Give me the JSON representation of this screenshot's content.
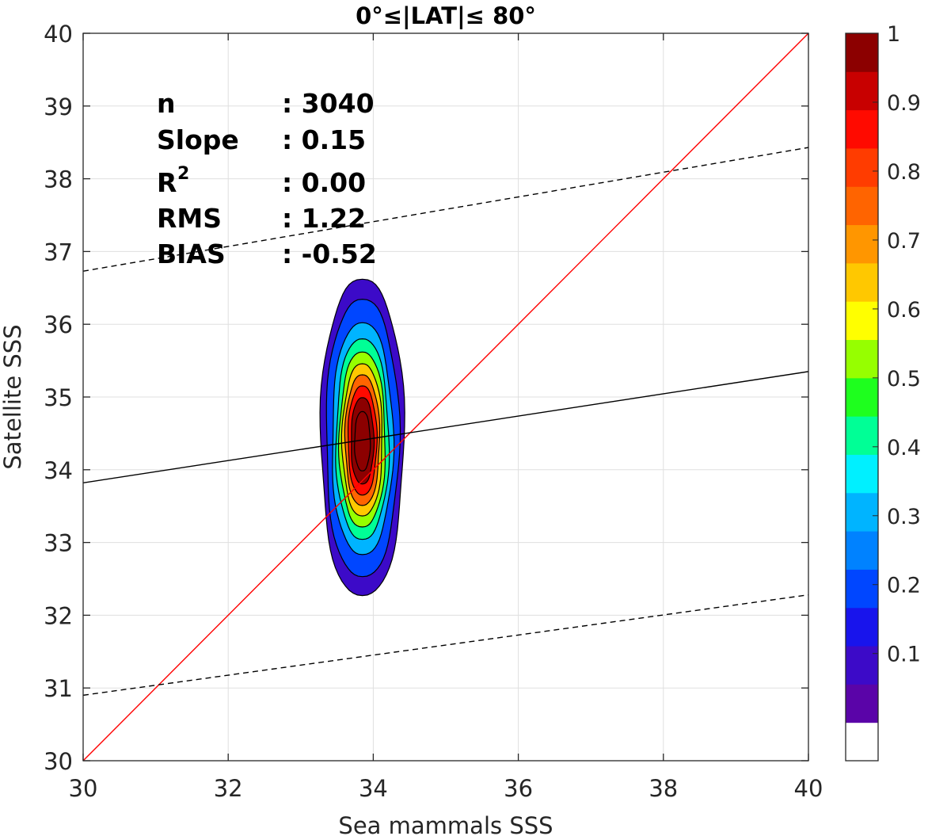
{
  "chart_data": {
    "type": "contour",
    "title": "0°≤|LAT|≤ 80°",
    "xlabel": "Sea mammals  SSS",
    "ylabel": "Satellite SSS",
    "xlim": [
      30,
      40
    ],
    "ylim": [
      30,
      40
    ],
    "xticks": [
      "30",
      "32",
      "34",
      "36",
      "38",
      "40"
    ],
    "yticks": [
      "30",
      "31",
      "32",
      "33",
      "34",
      "35",
      "36",
      "37",
      "38",
      "39",
      "40"
    ],
    "grid": true,
    "stats": [
      {
        "name": "n",
        "value": ": 3040"
      },
      {
        "name": "Slope",
        "value": ": 0.15"
      },
      {
        "name": "R",
        "sup": "2",
        "value": ": 0.00"
      },
      {
        "name": "RMS",
        "value": ": 1.22"
      },
      {
        "name": "BIAS",
        "value": ": -0.52"
      }
    ],
    "lines": [
      {
        "kind": "one-to-one",
        "color": "#ff0000",
        "x": [
          30,
          40
        ],
        "y": [
          30,
          40
        ]
      },
      {
        "kind": "regression",
        "color": "#000000",
        "style": "solid",
        "x": [
          30,
          40
        ],
        "y": [
          33.82,
          35.35
        ]
      },
      {
        "kind": "upper-bound",
        "color": "#000000",
        "style": "dashed",
        "x": [
          30,
          40
        ],
        "y": [
          36.73,
          38.43
        ]
      },
      {
        "kind": "lower-bound",
        "color": "#000000",
        "style": "dashed",
        "x": [
          30,
          40
        ],
        "y": [
          30.9,
          32.28
        ]
      }
    ],
    "density": {
      "center_x": 33.85,
      "center_y": 34.4,
      "levels": [
        0.05,
        0.1,
        0.2,
        0.3,
        0.4,
        0.5,
        0.6,
        0.7,
        0.8,
        0.9
      ],
      "extent_outer_x": [
        33.4,
        34.55
      ],
      "extent_outer_y": [
        32.27,
        36.62
      ],
      "peak_location": [
        33.85,
        34.38
      ]
    },
    "colorbar": {
      "ticks": [
        "0.1",
        "0.2",
        "0.3",
        "0.4",
        "0.5",
        "0.6",
        "0.7",
        "0.8",
        "0.9",
        "1"
      ],
      "tick_values": [
        0.1,
        0.2,
        0.3,
        0.4,
        0.5,
        0.6,
        0.7,
        0.8,
        0.9,
        1.0
      ],
      "colors": [
        "#ffffff",
        "#5a04a8",
        "#3c0ac8",
        "#1814ec",
        "#0046ff",
        "#0082ff",
        "#00b4ff",
        "#00f0ff",
        "#00ff96",
        "#1eff1e",
        "#96ff00",
        "#ffff00",
        "#ffc800",
        "#ff9600",
        "#ff6400",
        "#ff3c00",
        "#ff0a00",
        "#c80000",
        "#8c0000"
      ]
    }
  }
}
